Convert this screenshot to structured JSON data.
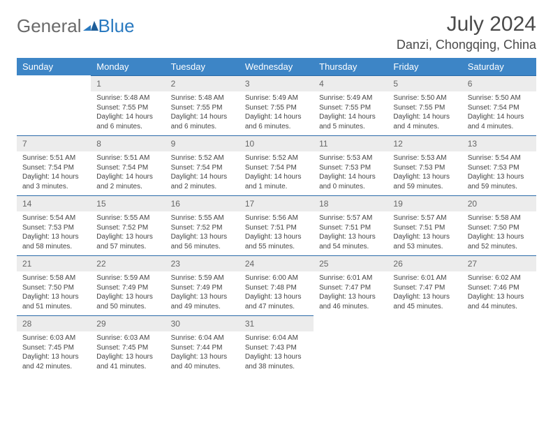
{
  "logo": {
    "text_general": "General",
    "text_blue": "Blue"
  },
  "title": "July 2024",
  "location": "Danzi, Chongqing, China",
  "colors": {
    "header_bg": "#3d85c6",
    "header_text": "#ffffff",
    "daynum_bg": "#ececec",
    "daynum_border": "#2a6aa8",
    "body_text": "#444444",
    "logo_blue": "#2a7ac0"
  },
  "weekdays": [
    "Sunday",
    "Monday",
    "Tuesday",
    "Wednesday",
    "Thursday",
    "Friday",
    "Saturday"
  ],
  "weeks": [
    [
      null,
      {
        "n": "1",
        "sr": "Sunrise: 5:48 AM",
        "ss": "Sunset: 7:55 PM",
        "dl": "Daylight: 14 hours and 6 minutes."
      },
      {
        "n": "2",
        "sr": "Sunrise: 5:48 AM",
        "ss": "Sunset: 7:55 PM",
        "dl": "Daylight: 14 hours and 6 minutes."
      },
      {
        "n": "3",
        "sr": "Sunrise: 5:49 AM",
        "ss": "Sunset: 7:55 PM",
        "dl": "Daylight: 14 hours and 6 minutes."
      },
      {
        "n": "4",
        "sr": "Sunrise: 5:49 AM",
        "ss": "Sunset: 7:55 PM",
        "dl": "Daylight: 14 hours and 5 minutes."
      },
      {
        "n": "5",
        "sr": "Sunrise: 5:50 AM",
        "ss": "Sunset: 7:55 PM",
        "dl": "Daylight: 14 hours and 4 minutes."
      },
      {
        "n": "6",
        "sr": "Sunrise: 5:50 AM",
        "ss": "Sunset: 7:54 PM",
        "dl": "Daylight: 14 hours and 4 minutes."
      }
    ],
    [
      {
        "n": "7",
        "sr": "Sunrise: 5:51 AM",
        "ss": "Sunset: 7:54 PM",
        "dl": "Daylight: 14 hours and 3 minutes."
      },
      {
        "n": "8",
        "sr": "Sunrise: 5:51 AM",
        "ss": "Sunset: 7:54 PM",
        "dl": "Daylight: 14 hours and 2 minutes."
      },
      {
        "n": "9",
        "sr": "Sunrise: 5:52 AM",
        "ss": "Sunset: 7:54 PM",
        "dl": "Daylight: 14 hours and 2 minutes."
      },
      {
        "n": "10",
        "sr": "Sunrise: 5:52 AM",
        "ss": "Sunset: 7:54 PM",
        "dl": "Daylight: 14 hours and 1 minute."
      },
      {
        "n": "11",
        "sr": "Sunrise: 5:53 AM",
        "ss": "Sunset: 7:53 PM",
        "dl": "Daylight: 14 hours and 0 minutes."
      },
      {
        "n": "12",
        "sr": "Sunrise: 5:53 AM",
        "ss": "Sunset: 7:53 PM",
        "dl": "Daylight: 13 hours and 59 minutes."
      },
      {
        "n": "13",
        "sr": "Sunrise: 5:54 AM",
        "ss": "Sunset: 7:53 PM",
        "dl": "Daylight: 13 hours and 59 minutes."
      }
    ],
    [
      {
        "n": "14",
        "sr": "Sunrise: 5:54 AM",
        "ss": "Sunset: 7:53 PM",
        "dl": "Daylight: 13 hours and 58 minutes."
      },
      {
        "n": "15",
        "sr": "Sunrise: 5:55 AM",
        "ss": "Sunset: 7:52 PM",
        "dl": "Daylight: 13 hours and 57 minutes."
      },
      {
        "n": "16",
        "sr": "Sunrise: 5:55 AM",
        "ss": "Sunset: 7:52 PM",
        "dl": "Daylight: 13 hours and 56 minutes."
      },
      {
        "n": "17",
        "sr": "Sunrise: 5:56 AM",
        "ss": "Sunset: 7:51 PM",
        "dl": "Daylight: 13 hours and 55 minutes."
      },
      {
        "n": "18",
        "sr": "Sunrise: 5:57 AM",
        "ss": "Sunset: 7:51 PM",
        "dl": "Daylight: 13 hours and 54 minutes."
      },
      {
        "n": "19",
        "sr": "Sunrise: 5:57 AM",
        "ss": "Sunset: 7:51 PM",
        "dl": "Daylight: 13 hours and 53 minutes."
      },
      {
        "n": "20",
        "sr": "Sunrise: 5:58 AM",
        "ss": "Sunset: 7:50 PM",
        "dl": "Daylight: 13 hours and 52 minutes."
      }
    ],
    [
      {
        "n": "21",
        "sr": "Sunrise: 5:58 AM",
        "ss": "Sunset: 7:50 PM",
        "dl": "Daylight: 13 hours and 51 minutes."
      },
      {
        "n": "22",
        "sr": "Sunrise: 5:59 AM",
        "ss": "Sunset: 7:49 PM",
        "dl": "Daylight: 13 hours and 50 minutes."
      },
      {
        "n": "23",
        "sr": "Sunrise: 5:59 AM",
        "ss": "Sunset: 7:49 PM",
        "dl": "Daylight: 13 hours and 49 minutes."
      },
      {
        "n": "24",
        "sr": "Sunrise: 6:00 AM",
        "ss": "Sunset: 7:48 PM",
        "dl": "Daylight: 13 hours and 47 minutes."
      },
      {
        "n": "25",
        "sr": "Sunrise: 6:01 AM",
        "ss": "Sunset: 7:47 PM",
        "dl": "Daylight: 13 hours and 46 minutes."
      },
      {
        "n": "26",
        "sr": "Sunrise: 6:01 AM",
        "ss": "Sunset: 7:47 PM",
        "dl": "Daylight: 13 hours and 45 minutes."
      },
      {
        "n": "27",
        "sr": "Sunrise: 6:02 AM",
        "ss": "Sunset: 7:46 PM",
        "dl": "Daylight: 13 hours and 44 minutes."
      }
    ],
    [
      {
        "n": "28",
        "sr": "Sunrise: 6:03 AM",
        "ss": "Sunset: 7:45 PM",
        "dl": "Daylight: 13 hours and 42 minutes."
      },
      {
        "n": "29",
        "sr": "Sunrise: 6:03 AM",
        "ss": "Sunset: 7:45 PM",
        "dl": "Daylight: 13 hours and 41 minutes."
      },
      {
        "n": "30",
        "sr": "Sunrise: 6:04 AM",
        "ss": "Sunset: 7:44 PM",
        "dl": "Daylight: 13 hours and 40 minutes."
      },
      {
        "n": "31",
        "sr": "Sunrise: 6:04 AM",
        "ss": "Sunset: 7:43 PM",
        "dl": "Daylight: 13 hours and 38 minutes."
      },
      null,
      null,
      null
    ]
  ]
}
